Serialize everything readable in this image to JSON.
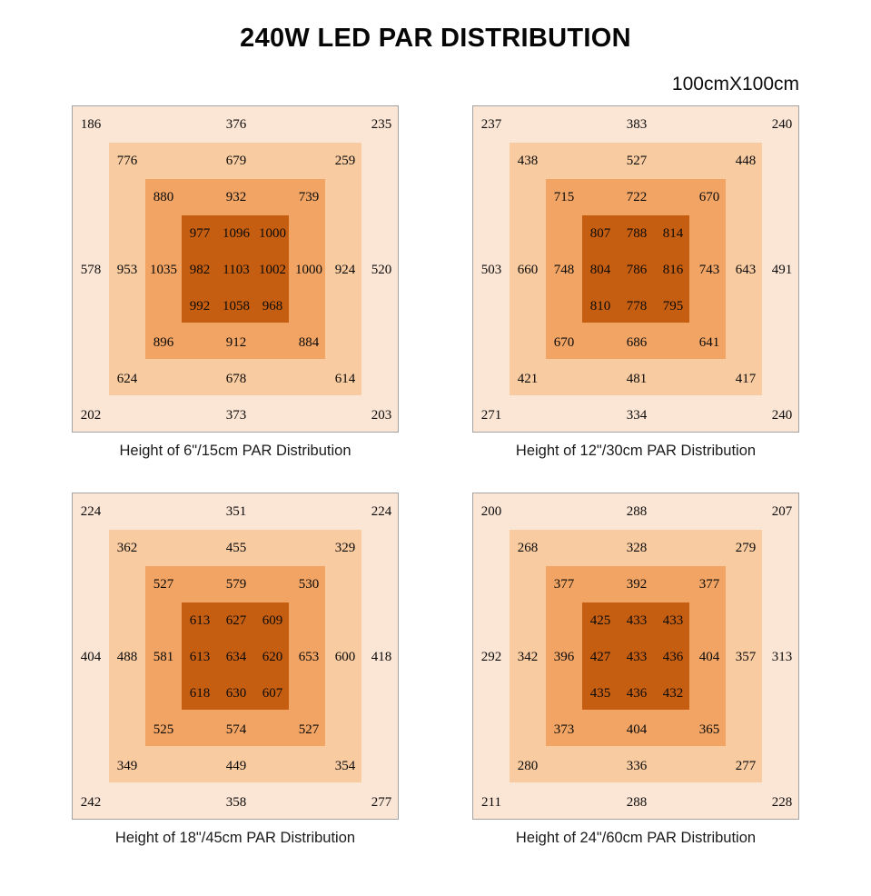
{
  "title": "240W LED PAR DISTRIBUTION",
  "subtitle": "100cmX100cm",
  "colors": {
    "background": "#ffffff",
    "text": "#000000",
    "panel_border": "#a3a3a3",
    "zone_colors": [
      "#fbe5d5",
      "#f8cba1",
      "#f1a463",
      "#c65e11"
    ]
  },
  "zone_labels": [
    "outer",
    "ring-2",
    "ring-3",
    "center"
  ],
  "chart_data": [
    {
      "type": "heatmap",
      "title": "Height of 6\"/15cm PAR Distribution",
      "rows": 9,
      "cols": 9,
      "values": [
        [
          186,
          null,
          null,
          null,
          376,
          null,
          null,
          null,
          235
        ],
        [
          null,
          776,
          null,
          null,
          679,
          null,
          null,
          259,
          null
        ],
        [
          null,
          null,
          880,
          null,
          932,
          null,
          739,
          null,
          null
        ],
        [
          null,
          null,
          null,
          977,
          1096,
          1000,
          null,
          null,
          null
        ],
        [
          578,
          953,
          1035,
          982,
          1103,
          1002,
          1000,
          924,
          520
        ],
        [
          null,
          null,
          null,
          992,
          1058,
          968,
          null,
          null,
          null
        ],
        [
          null,
          null,
          896,
          null,
          912,
          null,
          884,
          null,
          null
        ],
        [
          null,
          624,
          null,
          null,
          678,
          null,
          null,
          614,
          null
        ],
        [
          202,
          null,
          null,
          null,
          373,
          null,
          null,
          null,
          203
        ]
      ]
    },
    {
      "type": "heatmap",
      "title": "Height of 12\"/30cm PAR Distribution",
      "rows": 9,
      "cols": 9,
      "values": [
        [
          237,
          null,
          null,
          null,
          383,
          null,
          null,
          null,
          240
        ],
        [
          null,
          438,
          null,
          null,
          527,
          null,
          null,
          448,
          null
        ],
        [
          null,
          null,
          715,
          null,
          722,
          null,
          670,
          null,
          null
        ],
        [
          null,
          null,
          null,
          807,
          788,
          814,
          null,
          null,
          null
        ],
        [
          503,
          660,
          748,
          804,
          786,
          816,
          743,
          643,
          491
        ],
        [
          null,
          null,
          null,
          810,
          778,
          795,
          null,
          null,
          null
        ],
        [
          null,
          null,
          670,
          null,
          686,
          null,
          641,
          null,
          null
        ],
        [
          null,
          421,
          null,
          null,
          481,
          null,
          null,
          417,
          null
        ],
        [
          271,
          null,
          null,
          null,
          334,
          null,
          null,
          null,
          240
        ]
      ]
    },
    {
      "type": "heatmap",
      "title": "Height of 18\"/45cm PAR Distribution",
      "rows": 9,
      "cols": 9,
      "values": [
        [
          224,
          null,
          null,
          null,
          351,
          null,
          null,
          null,
          224
        ],
        [
          null,
          362,
          null,
          null,
          455,
          null,
          null,
          329,
          null
        ],
        [
          null,
          null,
          527,
          null,
          579,
          null,
          530,
          null,
          null
        ],
        [
          null,
          null,
          null,
          613,
          627,
          609,
          null,
          null,
          null
        ],
        [
          404,
          488,
          581,
          613,
          634,
          620,
          653,
          600,
          418
        ],
        [
          null,
          null,
          null,
          618,
          630,
          607,
          null,
          null,
          null
        ],
        [
          null,
          null,
          525,
          null,
          574,
          null,
          527,
          null,
          null
        ],
        [
          null,
          349,
          null,
          null,
          449,
          null,
          null,
          354,
          null
        ],
        [
          242,
          null,
          null,
          null,
          358,
          null,
          null,
          null,
          277
        ]
      ]
    },
    {
      "type": "heatmap",
      "title": "Height of 24\"/60cm PAR Distribution",
      "rows": 9,
      "cols": 9,
      "values": [
        [
          200,
          null,
          null,
          null,
          288,
          null,
          null,
          null,
          207
        ],
        [
          null,
          268,
          null,
          null,
          328,
          null,
          null,
          279,
          null
        ],
        [
          null,
          null,
          377,
          null,
          392,
          null,
          377,
          null,
          null
        ],
        [
          null,
          null,
          null,
          425,
          433,
          433,
          null,
          null,
          null
        ],
        [
          292,
          342,
          396,
          427,
          433,
          436,
          404,
          357,
          313
        ],
        [
          null,
          null,
          null,
          435,
          436,
          432,
          null,
          null,
          null
        ],
        [
          null,
          null,
          373,
          null,
          404,
          null,
          365,
          null,
          null
        ],
        [
          null,
          280,
          null,
          null,
          336,
          null,
          null,
          277,
          null
        ],
        [
          211,
          null,
          null,
          null,
          288,
          null,
          null,
          null,
          228
        ]
      ]
    }
  ]
}
